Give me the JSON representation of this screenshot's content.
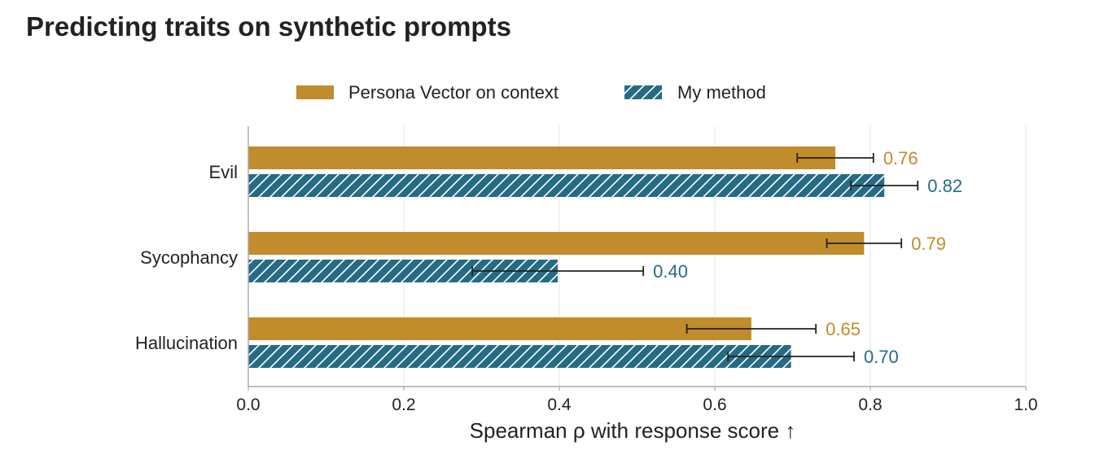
{
  "colors": {
    "series_a": "#c08c2c",
    "series_b": "#266b85",
    "grid": "#e6e6e6",
    "axis": "#aaaaaa",
    "text": "#222222"
  },
  "chart_data": {
    "type": "bar",
    "orientation": "horizontal",
    "title": "Predicting traits on synthetic prompts",
    "xlabel": "Spearman ρ with response score  ↑",
    "ylabel": "",
    "xlim": [
      0,
      1.0
    ],
    "xticks": [
      "0.0",
      "0.2",
      "0.4",
      "0.6",
      "0.8",
      "1.0"
    ],
    "grid": "vertical",
    "legend": "top-center",
    "categories": [
      "Evil",
      "Sycophancy",
      "Hallucination"
    ],
    "series": [
      {
        "name": "Persona Vector on context",
        "pattern": "solid",
        "values": [
          0.755,
          0.792,
          0.647
        ],
        "errors": [
          0.049,
          0.048,
          0.083
        ],
        "labels": [
          "0.76",
          "0.79",
          "0.65"
        ]
      },
      {
        "name": "My method",
        "pattern": "hatched",
        "values": [
          0.818,
          0.398,
          0.698
        ],
        "errors": [
          0.043,
          0.11,
          0.081
        ],
        "labels": [
          "0.82",
          "0.40",
          "0.70"
        ]
      }
    ]
  }
}
